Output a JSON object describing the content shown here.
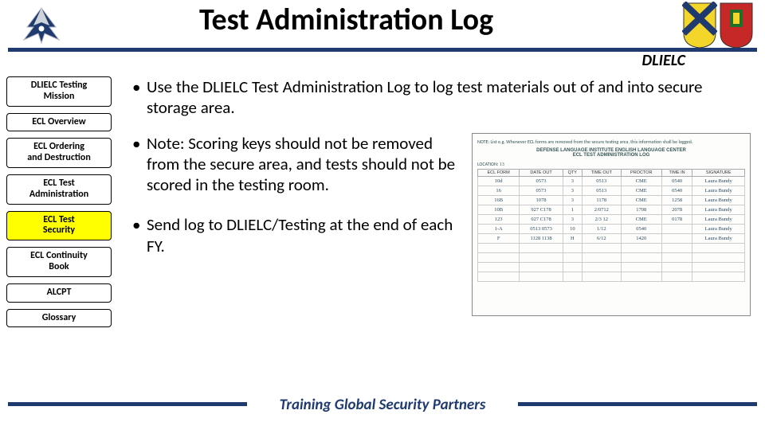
{
  "header": {
    "title": "Test Administration Log",
    "sublabel": "DLIELC"
  },
  "sidebar": {
    "items": [
      {
        "label": "DLIELC Testing\nMission",
        "active": false
      },
      {
        "label": "ECL Overview",
        "active": false
      },
      {
        "label": "ECL Ordering\nand Destruction",
        "active": false
      },
      {
        "label": "ECL Test\nAdministration",
        "active": false
      },
      {
        "label": "ECL Test\nSecurity",
        "active": true
      },
      {
        "label": "ECL Continuity\nBook",
        "active": false
      },
      {
        "label": "ALCPT",
        "active": false
      },
      {
        "label": "Glossary",
        "active": false
      }
    ]
  },
  "content": {
    "bullet1": "Use the DLIELC Test Administration Log to log test materials out of and into secure storage area.",
    "bullet2": "Note: Scoring keys should not be removed from the secure area, and tests should not be scored in the testing room.",
    "bullet3": "Send log to DLIELC/Testing at the end of each FY."
  },
  "log_image": {
    "note_text": "NOTE: List e.g. Whenever ECL forms are removed from the secure testing area, this information shall be logged.",
    "header_right": "DEFENSE LANGUAGE INSTITUTE ENGLISH LANGUAGE CENTER\nECL TEST ADMINISTRATION LOG",
    "field1_label": "LOCATION",
    "field1_value": "13",
    "columns": [
      "ECL FORM",
      "DATE OUT",
      "QTY",
      "TIME OUT",
      "PROCTOR",
      "TIME IN",
      "SIGNATURE"
    ],
    "rows": [
      [
        "10d",
        "0573",
        "3",
        "0513",
        "CME",
        "0540",
        "Laura Bundy"
      ],
      [
        "16",
        "0573",
        "3",
        "0513",
        "CME",
        "0540",
        "Laura Bundy"
      ],
      [
        "16B",
        "1078",
        "3",
        "1178",
        "CME",
        "1258",
        "Laura Bundy"
      ],
      [
        "10B",
        "927 C178",
        "1",
        "2/0712",
        "1708",
        "2078",
        "Laura Bundy"
      ],
      [
        "123",
        "027 C178",
        "3",
        "2/3 12",
        "CME",
        "0178",
        "Laura Bundy"
      ],
      [
        "1-A",
        "0513 0573",
        "10",
        "1/12",
        "0540",
        "",
        "Laura Bundy"
      ],
      [
        "F",
        "1128 1138",
        "H",
        "6/12",
        "1420",
        "",
        "Laura Bundy"
      ],
      [
        "",
        "",
        "",
        "",
        "",
        "",
        ""
      ],
      [
        "",
        "",
        "",
        "",
        "",
        "",
        ""
      ],
      [
        "",
        "",
        "",
        "",
        "",
        "",
        ""
      ],
      [
        "",
        "",
        "",
        "",
        "",
        "",
        ""
      ]
    ]
  },
  "footer": {
    "text": "Training Global Security Partners"
  },
  "colors": {
    "accent": "#1f3a6e",
    "highlight": "#ffff00"
  }
}
